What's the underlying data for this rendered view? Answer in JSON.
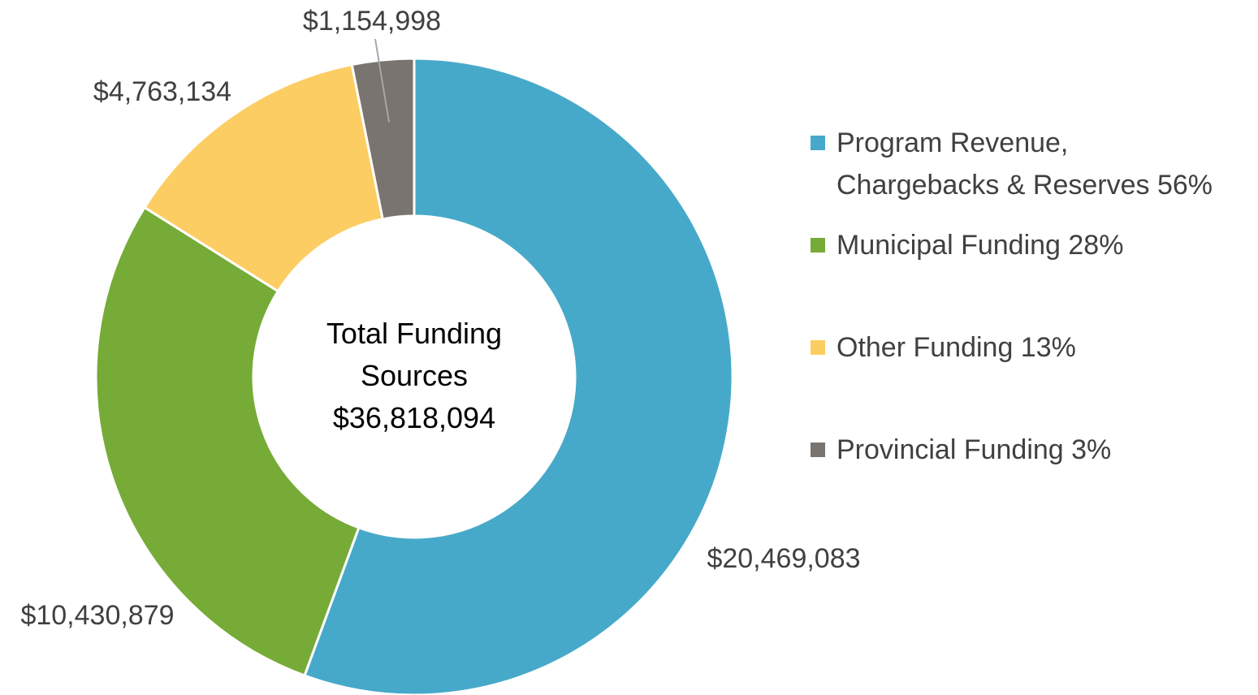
{
  "chart_data": {
    "type": "donut",
    "center_title": "Total Funding Sources",
    "center_value": "$36,818,094",
    "categories": [
      "Program Revenue, Chargebacks & Reserves 56%",
      "Municipal Funding 28%",
      "Other Funding 13%",
      "Provincial Funding 3%"
    ],
    "values": [
      20469083,
      10430879,
      4763134,
      1154998
    ],
    "value_labels": [
      "$20,469,083",
      "$10,430,879",
      "$4,763,134",
      "$1,154,998"
    ],
    "colors": [
      "#47a9c9",
      "#76ab37",
      "#fccd62",
      "#7a7470"
    ]
  }
}
